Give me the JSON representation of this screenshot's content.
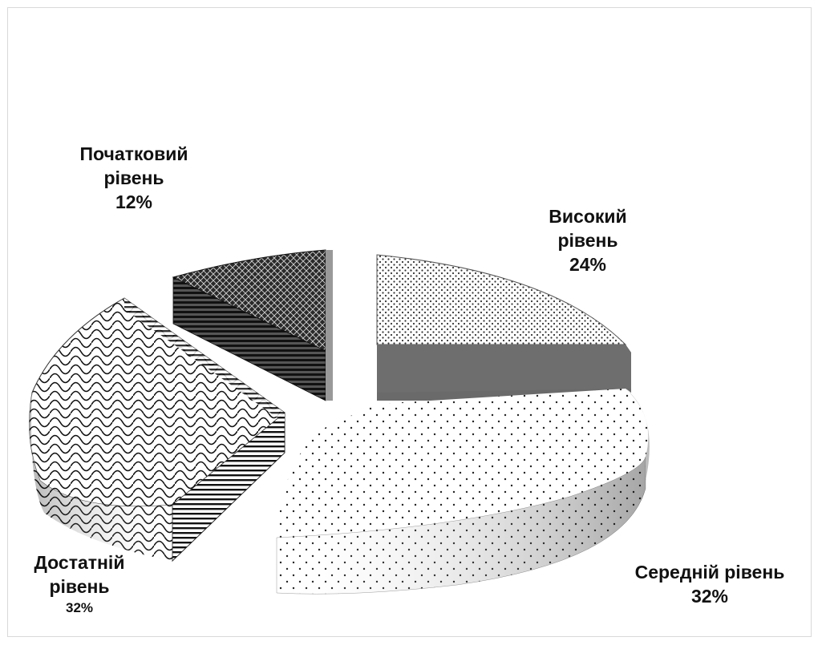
{
  "chart_data": {
    "type": "pie",
    "variant": "3d-exploded",
    "slices": [
      {
        "label_lines": [
          "Високий",
          "рівень"
        ],
        "value": 24,
        "value_text": "24%",
        "color": "#8f8f8f"
      },
      {
        "label_lines": [
          "Середній рівень"
        ],
        "value": 32,
        "value_text": "32%",
        "color": "#ededed"
      },
      {
        "label_lines": [
          "Достатній",
          "рівень"
        ],
        "value": 32,
        "value_text": "32%",
        "color": "#f4f4f4"
      },
      {
        "label_lines": [
          "Початковий",
          "рівень"
        ],
        "value": 12,
        "value_text": "12%",
        "color": "#4a4a4a"
      }
    ]
  }
}
